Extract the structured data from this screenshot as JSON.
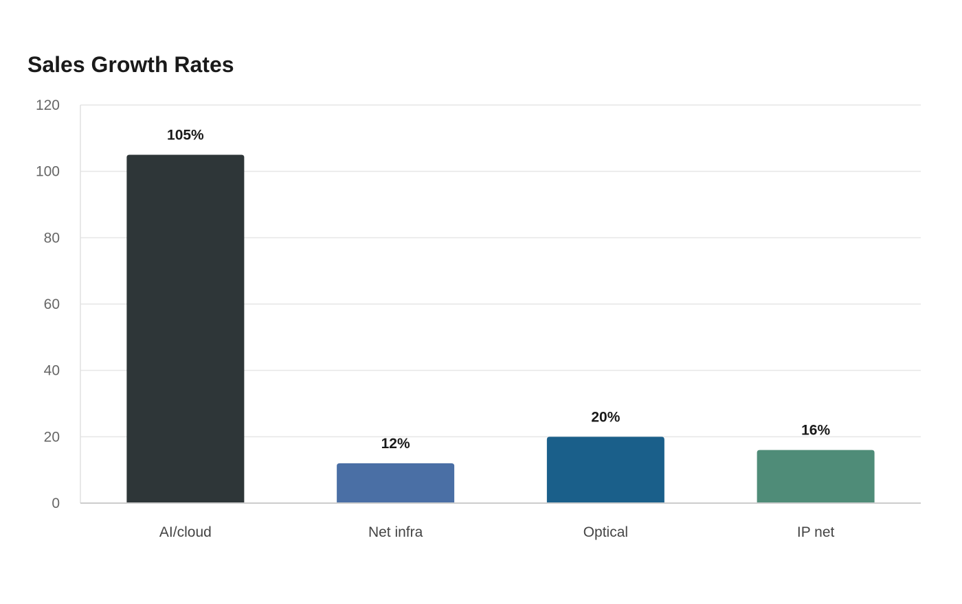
{
  "chart_data": {
    "type": "bar",
    "title": "Sales Growth Rates",
    "xlabel": "",
    "ylabel": "",
    "categories": [
      "AI/cloud",
      "Net infra",
      "Optical",
      "IP net"
    ],
    "values": [
      105,
      12,
      20,
      16
    ],
    "data_labels": [
      "105%",
      "12%",
      "20%",
      "16%"
    ],
    "colors": [
      "#2e3638",
      "#4a6fa5",
      "#1a5f8a",
      "#4f8c78"
    ],
    "ylim": [
      0,
      120
    ],
    "yticks": [
      0,
      20,
      40,
      60,
      80,
      100,
      120
    ],
    "grid": true,
    "legend": "none"
  }
}
